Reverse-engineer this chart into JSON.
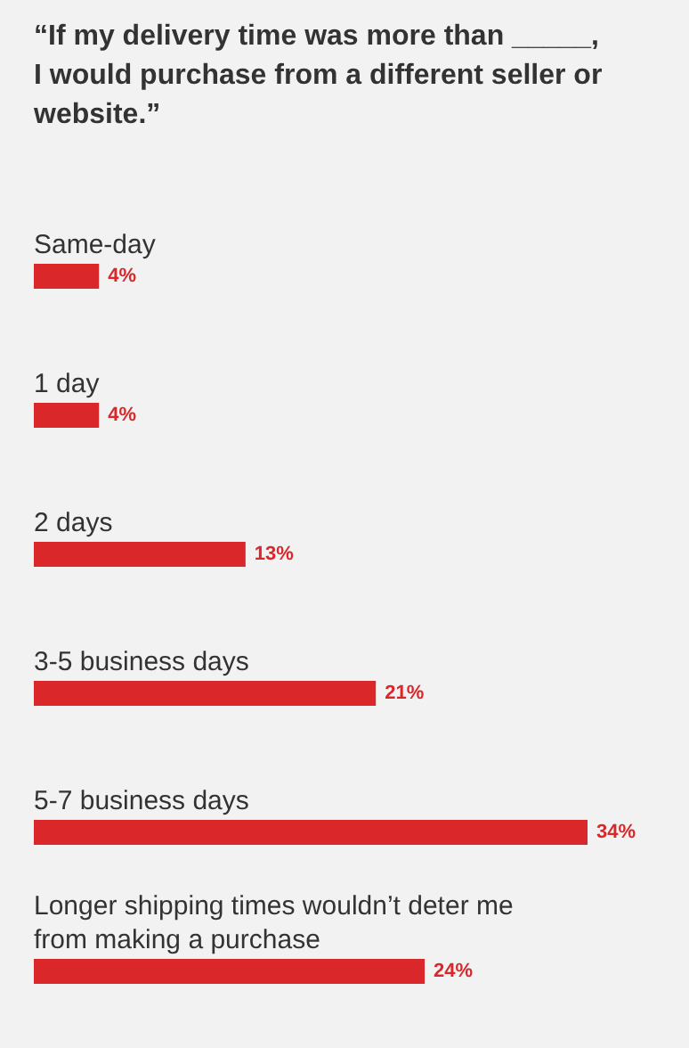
{
  "chart_data": {
    "type": "bar",
    "orientation": "horizontal",
    "title": "“If my delivery time was more than _____,\nI would purchase from a different seller or\nwebsite.”",
    "categories": [
      "Same-day",
      "1 day",
      "2 days",
      "3-5 business days",
      "5-7 business days",
      "Longer shipping times wouldn’t deter me\nfrom making a purchase"
    ],
    "values": [
      4,
      4,
      13,
      21,
      34,
      24
    ],
    "value_labels": [
      "4%",
      "4%",
      "13%",
      "21%",
      "34%",
      "24%"
    ],
    "color": "#d9272a"
  }
}
